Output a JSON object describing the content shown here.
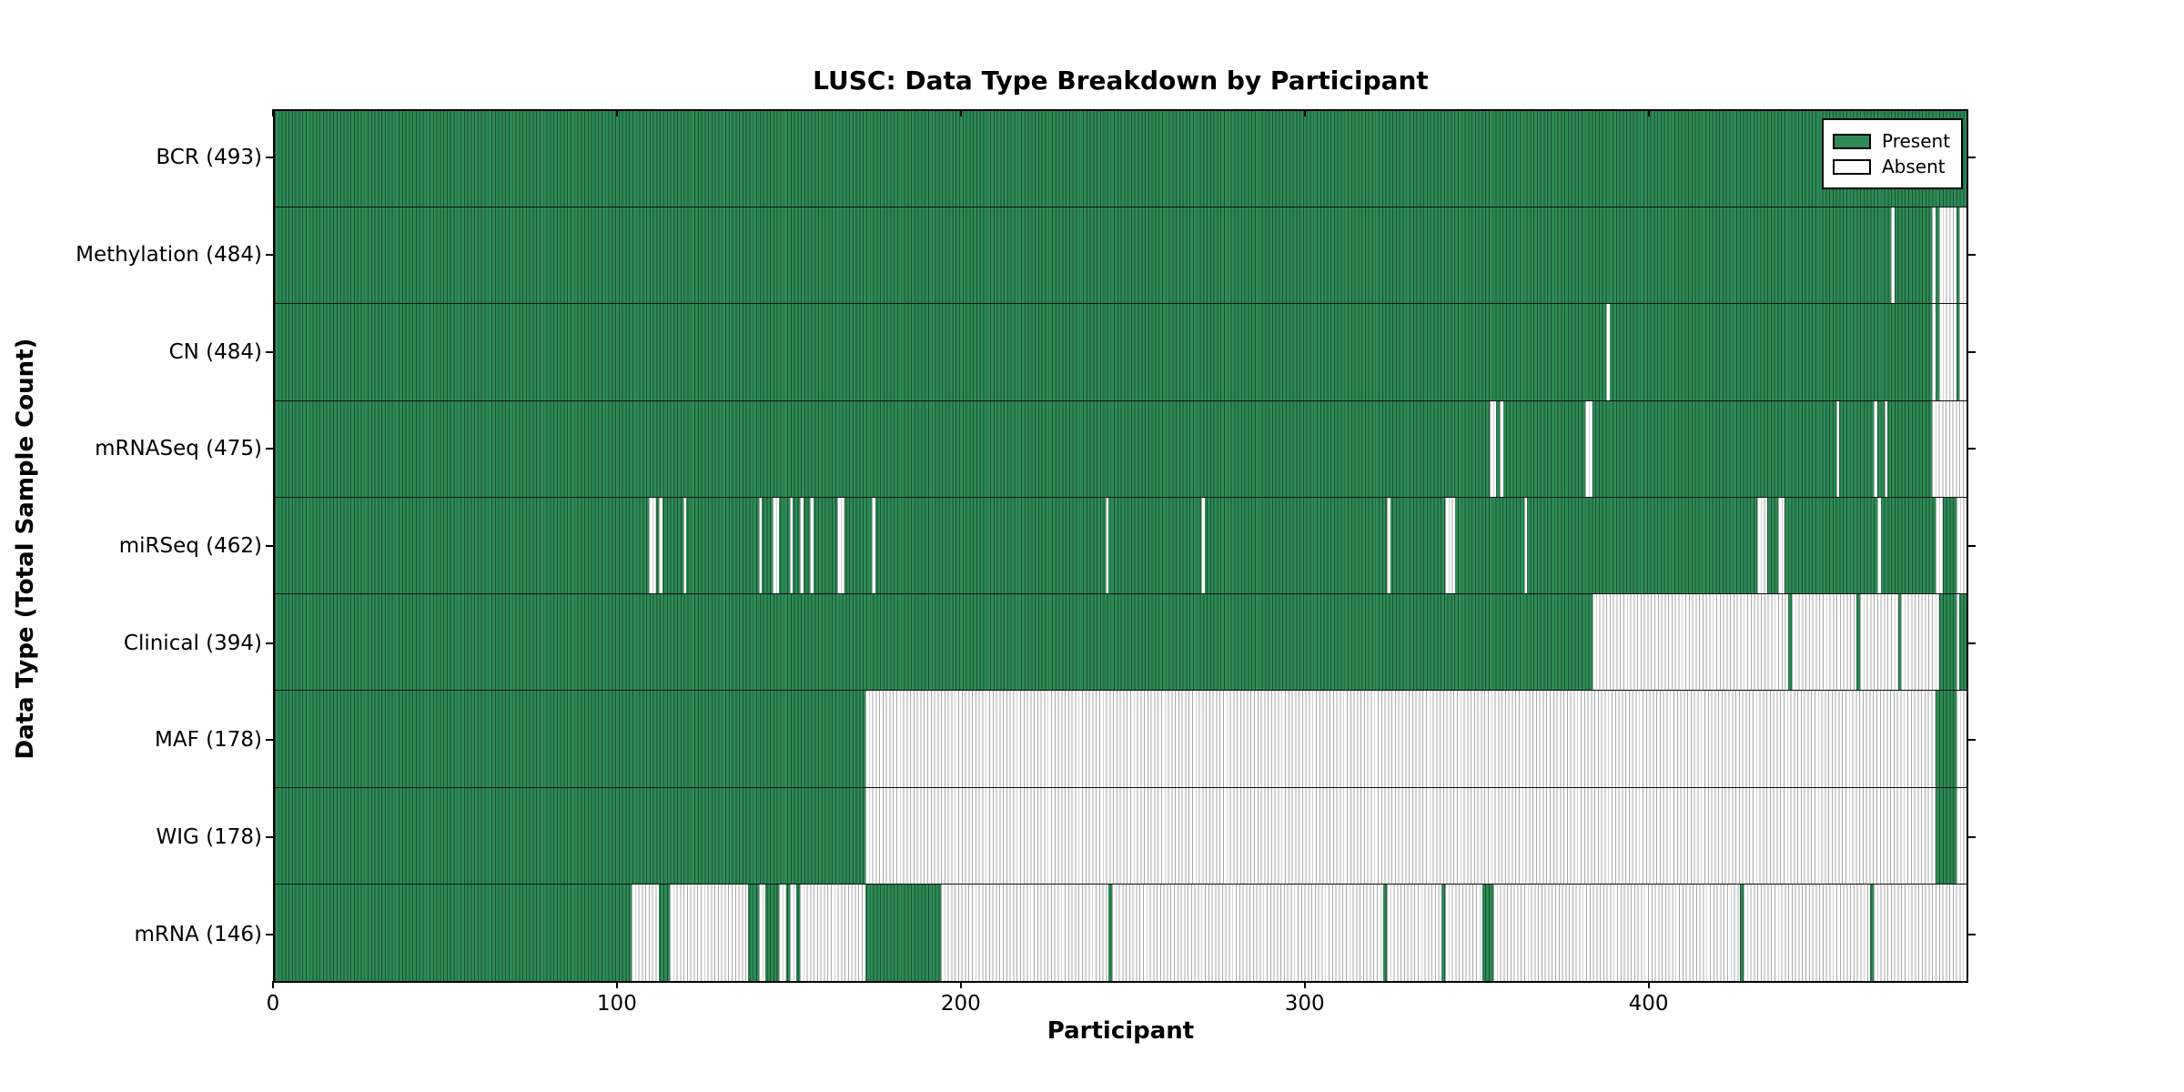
{
  "chart_data": {
    "type": "heatmap",
    "title": "LUSC: Data Type Breakdown by Participant",
    "xlabel": "Participant",
    "ylabel": "Data Type (Total Sample Count)",
    "x_range": [
      0,
      493
    ],
    "x_ticks": [
      0,
      100,
      200,
      300,
      400
    ],
    "n_participants": 493,
    "grid": false,
    "colors": {
      "present_fill": "#2e8b57",
      "present_edge": "#17502e",
      "absent_fill": "#ffffff",
      "absent_edge": "#a9a9a9",
      "axis": "#000000"
    },
    "legend": {
      "position": "top-right",
      "entries": [
        {
          "label": "Present",
          "color": "#2e8b57"
        },
        {
          "label": "Absent",
          "color": "#ffffff"
        }
      ]
    },
    "rows": [
      {
        "name": "BCR",
        "label": "BCR (493)",
        "count": 493,
        "absent_intervals": []
      },
      {
        "name": "Methylation",
        "label": "Methylation (484)",
        "count": 484,
        "absent_intervals": [
          [
            471,
            472
          ],
          [
            483,
            484
          ],
          [
            485,
            490
          ],
          [
            491,
            493
          ]
        ]
      },
      {
        "name": "CN",
        "label": "CN (484)",
        "count": 484,
        "absent_intervals": [
          [
            388,
            389
          ],
          [
            483,
            484
          ],
          [
            485,
            490
          ],
          [
            491,
            493
          ]
        ]
      },
      {
        "name": "mRNASeq",
        "label": "mRNASeq (475)",
        "count": 475,
        "absent_intervals": [
          [
            354,
            356
          ],
          [
            357,
            358
          ],
          [
            382,
            384
          ],
          [
            455,
            456
          ],
          [
            466,
            467
          ],
          [
            469,
            470
          ],
          [
            483,
            493
          ]
        ]
      },
      {
        "name": "miRSeq",
        "label": "miRSeq (462)",
        "count": 462,
        "absent_intervals": [
          [
            109,
            111
          ],
          [
            112,
            113
          ],
          [
            119,
            120
          ],
          [
            141,
            142
          ],
          [
            145,
            147
          ],
          [
            150,
            151
          ],
          [
            153,
            154
          ],
          [
            156,
            157
          ],
          [
            164,
            166
          ],
          [
            174,
            175
          ],
          [
            242,
            243
          ],
          [
            270,
            271
          ],
          [
            324,
            325
          ],
          [
            341,
            344
          ],
          [
            364,
            365
          ],
          [
            432,
            435
          ],
          [
            438,
            440
          ],
          [
            467,
            468
          ],
          [
            484,
            486
          ],
          [
            490,
            493
          ]
        ]
      },
      {
        "name": "Clinical",
        "label": "Clinical (394)",
        "count": 394,
        "absent_intervals": [
          [
            384,
            441
          ],
          [
            442,
            461
          ],
          [
            462,
            473
          ],
          [
            474,
            485
          ],
          [
            490,
            491
          ]
        ]
      },
      {
        "name": "MAF",
        "label": "MAF (178)",
        "count": 178,
        "absent_intervals": [
          [
            172,
            484
          ],
          [
            490,
            493
          ]
        ]
      },
      {
        "name": "WIG",
        "label": "WIG (178)",
        "count": 178,
        "absent_intervals": [
          [
            172,
            484
          ],
          [
            490,
            493
          ]
        ]
      },
      {
        "name": "mRNA",
        "label": "mRNA (146)",
        "count": 146,
        "absent_intervals": [
          [
            104,
            112
          ],
          [
            115,
            138
          ],
          [
            141,
            143
          ],
          [
            147,
            149
          ],
          [
            150,
            152
          ],
          [
            153,
            172
          ],
          [
            194,
            243
          ],
          [
            244,
            323
          ],
          [
            324,
            340
          ],
          [
            341,
            352
          ],
          [
            355,
            427
          ],
          [
            428,
            465
          ],
          [
            466,
            493
          ]
        ]
      }
    ]
  }
}
